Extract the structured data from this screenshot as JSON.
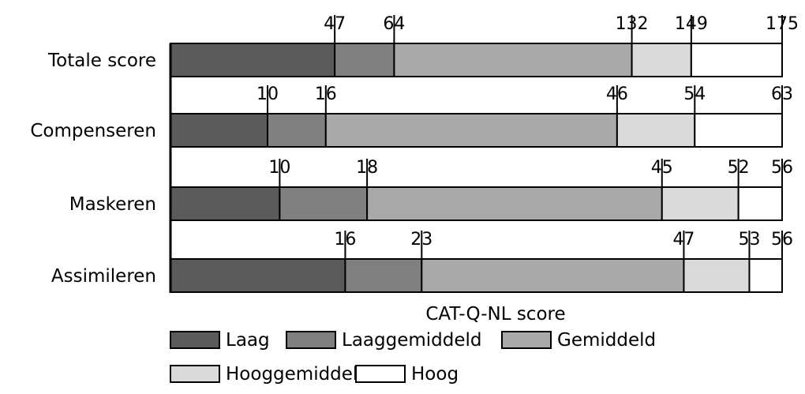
{
  "chart_data": {
    "type": "bar",
    "orientation": "horizontal",
    "stacked": true,
    "xlabel": "CAT-Q-NL score",
    "categories": [
      "Totale score",
      "Compenseren",
      "Maskeren",
      "Assimileren"
    ],
    "segment_names": [
      "Laag",
      "Laaggemiddeld",
      "Gemiddeld",
      "Hooggemiddeld",
      "Hoog"
    ],
    "colors": [
      "#5a5a5a",
      "#808080",
      "#a9a9a9",
      "#dadada",
      "#ffffff"
    ],
    "bars": [
      {
        "category": "Totale score",
        "max": 175,
        "thresholds": [
          47,
          64,
          132,
          149,
          175
        ]
      },
      {
        "category": "Compenseren",
        "max": 63,
        "thresholds": [
          10,
          16,
          46,
          54,
          63
        ]
      },
      {
        "category": "Maskeren",
        "max": 56,
        "thresholds": [
          10,
          18,
          45,
          52,
          56
        ]
      },
      {
        "category": "Assimileren",
        "max": 56,
        "thresholds": [
          16,
          23,
          47,
          53,
          56
        ]
      }
    ],
    "grid": false,
    "legend_position": "bottom"
  }
}
